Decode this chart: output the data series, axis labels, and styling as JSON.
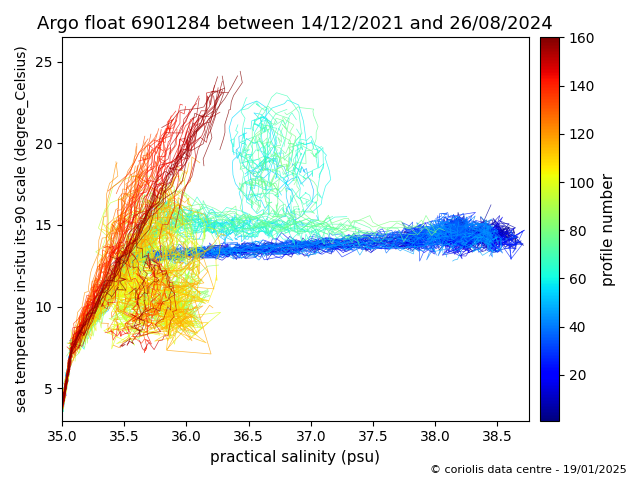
{
  "title": "Argo float 6901284 between 14/12/2021 and 26/08/2024",
  "xlabel": "practical salinity (psu)",
  "ylabel": "sea temperature in-situ its-90 scale (degree_Celsius)",
  "colorbar_label": "profile number",
  "copyright": "© coriolis data centre - 19/01/2025",
  "xlim": [
    35.0,
    38.75
  ],
  "ylim": [
    3.0,
    26.5
  ],
  "xticks": [
    35.0,
    35.5,
    36.0,
    36.5,
    37.0,
    37.5,
    38.0,
    38.5
  ],
  "yticks": [
    5,
    10,
    15,
    20,
    25
  ],
  "cbar_ticks": [
    20,
    40,
    60,
    80,
    100,
    120,
    140,
    160
  ],
  "n_profiles": 160,
  "colormap": "jet",
  "vmin": 1,
  "vmax": 160,
  "figsize": [
    6.4,
    4.8
  ],
  "dpi": 100
}
